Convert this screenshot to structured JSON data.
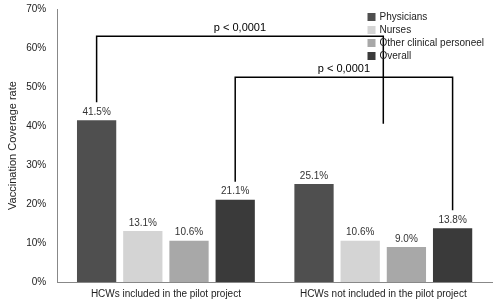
{
  "chart_data": {
    "type": "bar",
    "y_label": "Vaccination Coverage rate",
    "categories": [
      "HCWs included in the pilot project",
      "HCWs not included in the pilot project"
    ],
    "series": [
      {
        "name": "Physicians",
        "color": "#4f4f4f",
        "values": [
          41.5,
          25.1
        ],
        "value_labels": [
          "41.5%",
          "25.1%"
        ]
      },
      {
        "name": "Nurses",
        "color": "#d4d4d4",
        "values": [
          13.1,
          10.6
        ],
        "value_labels": [
          "13.1%",
          "10.6%"
        ]
      },
      {
        "name": "Other clinical personeel",
        "color": "#a8a8a8",
        "values": [
          10.6,
          9.0
        ],
        "value_labels": [
          "10.6%",
          "9.0%"
        ]
      },
      {
        "name": "Overall",
        "color": "#3a3a3a",
        "values": [
          21.1,
          13.8
        ],
        "value_labels": [
          "21.1%",
          "13.8%"
        ]
      }
    ],
    "ylim": [
      0,
      70
    ],
    "yticks": [
      {
        "value": 0,
        "label": "0%"
      },
      {
        "value": 10,
        "label": "10%"
      },
      {
        "value": 20,
        "label": "20%"
      },
      {
        "value": 30,
        "label": "30%"
      },
      {
        "value": 40,
        "label": "40%"
      },
      {
        "value": 50,
        "label": "50%"
      },
      {
        "value": 60,
        "label": "60%"
      },
      {
        "value": 70,
        "label": "70%"
      }
    ],
    "grid": false,
    "legend": "top-right",
    "data_labels": true,
    "annotations": [
      "p < 0,0001",
      "p < 0,0001"
    ]
  }
}
